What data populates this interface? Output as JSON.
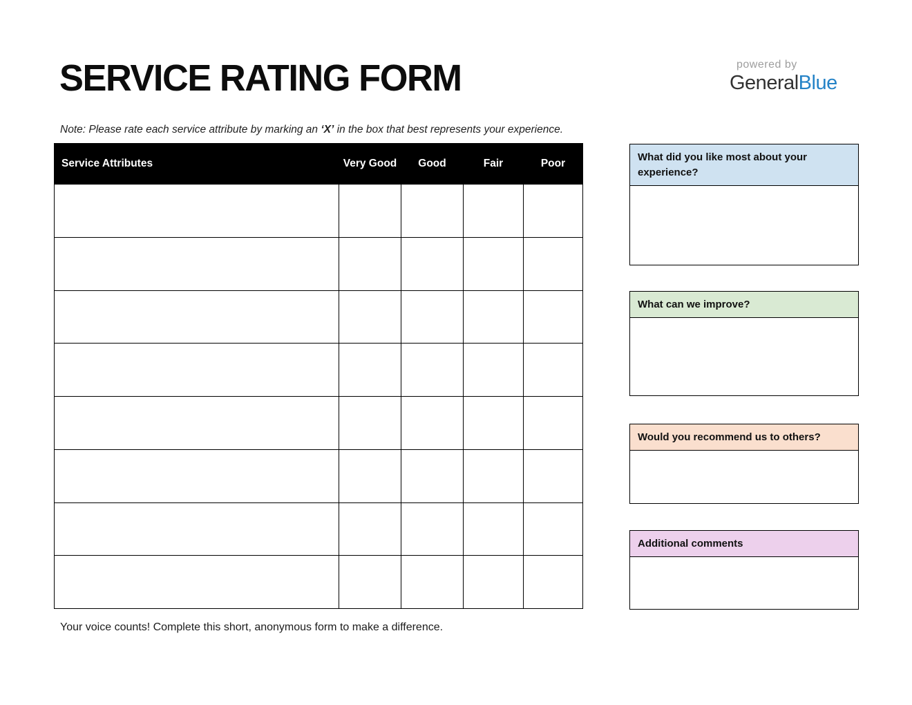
{
  "page": {
    "title": "SERVICE RATING FORM",
    "note_prefix": "Note: Please rate each service attribute by marking an ",
    "note_bold": "‘X’",
    "note_suffix": " in the box that best represents your experience.",
    "footer": "Your voice counts! Complete this short, anonymous form to make a difference."
  },
  "branding": {
    "powered_by": "powered by",
    "brand_general": "General",
    "brand_blue": "Blue",
    "brand_blue_color": "#2583c7",
    "powered_by_color": "#9d9d9d"
  },
  "rating_table": {
    "columns": [
      "Service Attributes",
      "Very Good",
      "Good",
      "Fair",
      "Poor"
    ],
    "rows": 8,
    "header_bg": "#000000",
    "header_text_color": "#ffffff",
    "cell_value": ""
  },
  "feedback_boxes": [
    {
      "label": "What did you like most about your experience?",
      "header_bg": "#cfe2f1",
      "value": ""
    },
    {
      "label": "What can we improve?",
      "header_bg": "#d9ead3",
      "value": ""
    },
    {
      "label": "Would you recommend us to others?",
      "header_bg": "#fadfce",
      "value": ""
    },
    {
      "label": "Additional comments",
      "header_bg": "#edd0ec",
      "value": ""
    }
  ]
}
